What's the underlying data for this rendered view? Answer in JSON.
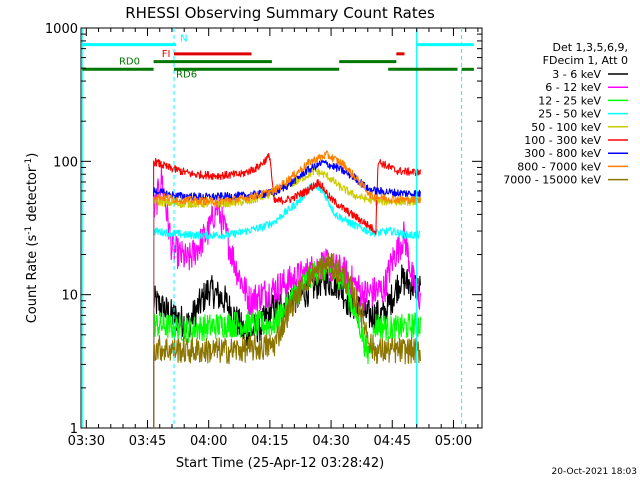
{
  "chart_data": {
    "type": "line",
    "title": "RHESSI Observing Summary Count Rates",
    "xlabel": "Start Time (25-Apr-12 03:28:42)",
    "ylabel": "Count Rate (s",
    "ylabel_exp": "-1",
    "ylabel_tail": " detector",
    "ylabel_close": ")",
    "xlim": [
      "03:28:42",
      "05:07:00"
    ],
    "ylim": [
      1,
      1000
    ],
    "y_scale": "log",
    "x_ticks": [
      "03:30",
      "03:45",
      "04:00",
      "04:15",
      "04:30",
      "04:45",
      "05:00"
    ],
    "x_tick_minutes": [
      210,
      225,
      240,
      255,
      270,
      285,
      300
    ],
    "y_ticks": [
      "1",
      "10",
      "100",
      "1000"
    ],
    "y_tick_values": [
      1,
      10,
      100,
      1000
    ],
    "legend_header": [
      "Det 1,3,5,6,9,",
      "FDecim 1, Att 0"
    ],
    "legend_placement": "right",
    "series": [
      {
        "name": "3 - 6 keV",
        "color": "#000000",
        "keyframes": [
          [
            226.5,
            9
          ],
          [
            231,
            7
          ],
          [
            235,
            6
          ],
          [
            240,
            11
          ],
          [
            244,
            9
          ],
          [
            249,
            5
          ],
          [
            253,
            6
          ],
          [
            256,
            8
          ],
          [
            263,
            10
          ],
          [
            268,
            13
          ],
          [
            272,
            12
          ],
          [
            274,
            9
          ],
          [
            279,
            7
          ],
          [
            283,
            7
          ],
          [
            287,
            13
          ],
          [
            292,
            11
          ]
        ]
      },
      {
        "name": "6 - 12 keV",
        "color": "#ff00ff",
        "keyframes": [
          [
            226.5,
            40
          ],
          [
            228.5,
            75
          ],
          [
            231,
            22
          ],
          [
            235,
            18
          ],
          [
            240,
            30
          ],
          [
            242,
            47
          ],
          [
            244,
            30
          ],
          [
            247,
            15
          ],
          [
            250,
            9
          ],
          [
            253,
            10
          ],
          [
            256,
            11
          ],
          [
            263,
            14
          ],
          [
            268,
            17
          ],
          [
            273,
            15
          ],
          [
            278,
            10
          ],
          [
            283,
            11
          ],
          [
            285,
            18
          ],
          [
            288,
            28
          ],
          [
            290,
            13
          ],
          [
            292,
            9
          ]
        ]
      },
      {
        "name": "12 - 25 keV",
        "color": "#00ff00",
        "keyframes": [
          [
            226.5,
            6
          ],
          [
            235,
            5.5
          ],
          [
            245,
            6
          ],
          [
            253,
            6
          ],
          [
            256,
            6
          ],
          [
            260,
            9
          ],
          [
            265,
            14
          ],
          [
            269,
            16
          ],
          [
            273,
            13
          ],
          [
            277,
            6
          ],
          [
            279,
            3.5
          ],
          [
            281,
            6
          ],
          [
            285,
            5.5
          ],
          [
            292,
            6
          ]
        ]
      },
      {
        "name": "25 - 50 keV",
        "color": "#00ffff",
        "keyframes": [
          [
            226.5,
            30
          ],
          [
            235,
            28
          ],
          [
            245,
            28
          ],
          [
            253,
            32
          ],
          [
            256,
            35
          ],
          [
            262,
            50
          ],
          [
            265,
            65
          ],
          [
            268,
            60
          ],
          [
            271,
            40
          ],
          [
            275,
            34
          ],
          [
            279,
            30
          ],
          [
            281,
            29
          ],
          [
            285,
            30
          ],
          [
            288,
            28
          ],
          [
            292,
            28
          ]
        ]
      },
      {
        "name": "50 - 100 keV",
        "color": "#cccc00",
        "keyframes": [
          [
            226.5,
            50
          ],
          [
            233,
            48
          ],
          [
            243,
            48
          ],
          [
            250,
            50
          ],
          [
            256,
            58
          ],
          [
            262,
            72
          ],
          [
            266,
            85
          ],
          [
            269,
            78
          ],
          [
            272,
            65
          ],
          [
            276,
            55
          ],
          [
            279,
            52
          ],
          [
            281,
            50
          ],
          [
            292,
            50
          ]
        ]
      },
      {
        "name": "100 - 300 keV",
        "color": "#ff0000",
        "keyframes": [
          [
            226.5,
            100
          ],
          [
            230,
            90
          ],
          [
            236,
            80
          ],
          [
            242,
            78
          ],
          [
            248,
            80
          ],
          [
            252,
            90
          ],
          [
            255,
            110
          ],
          [
            256,
            50
          ],
          [
            260,
            52
          ],
          [
            264,
            60
          ],
          [
            267,
            70
          ],
          [
            270,
            52
          ],
          [
            274,
            42
          ],
          [
            278,
            35
          ],
          [
            281,
            30
          ],
          [
            281.5,
            100
          ],
          [
            286,
            85
          ],
          [
            292,
            82
          ]
        ]
      },
      {
        "name": "300 - 800 keV",
        "color": "#0000ff",
        "keyframes": [
          [
            226.5,
            60
          ],
          [
            232,
            55
          ],
          [
            240,
            54
          ],
          [
            248,
            55
          ],
          [
            256,
            58
          ],
          [
            260,
            68
          ],
          [
            264,
            85
          ],
          [
            268,
            98
          ],
          [
            272,
            88
          ],
          [
            276,
            75
          ],
          [
            279,
            62
          ],
          [
            281,
            60
          ],
          [
            286,
            58
          ],
          [
            292,
            57
          ]
        ]
      },
      {
        "name": "800 - 7000 keV",
        "color": "#ff8000",
        "keyframes": [
          [
            226.5,
            55
          ],
          [
            232,
            52
          ],
          [
            240,
            50
          ],
          [
            248,
            52
          ],
          [
            256,
            60
          ],
          [
            260,
            75
          ],
          [
            265,
            100
          ],
          [
            269,
            112
          ],
          [
            273,
            95
          ],
          [
            277,
            70
          ],
          [
            280,
            55
          ],
          [
            281,
            54
          ],
          [
            286,
            52
          ],
          [
            292,
            51
          ]
        ]
      },
      {
        "name": "7000 - 15000 keV",
        "color": "#8b7500",
        "keyframes": [
          [
            226.5,
            4
          ],
          [
            235,
            3.8
          ],
          [
            245,
            3.8
          ],
          [
            253,
            4
          ],
          [
            256,
            4.2
          ],
          [
            260,
            8
          ],
          [
            264,
            13
          ],
          [
            269,
            17
          ],
          [
            273,
            14
          ],
          [
            277,
            8
          ],
          [
            280,
            4
          ],
          [
            281,
            3.8
          ],
          [
            292,
            3.8
          ]
        ]
      }
    ],
    "markers": {
      "cyan_verticals": [
        231.5,
        291.0,
        302.0
      ],
      "cyan_dashed": [
        231.5,
        302.0
      ],
      "cyan_solid": [
        291.0
      ],
      "bars": [
        {
          "label": "N",
          "color": "#00ffff",
          "level": 750,
          "segments": [
            [
              209,
              232
            ],
            [
              291,
              305
            ]
          ]
        },
        {
          "label": "FI",
          "color": "#e00000",
          "level": 640,
          "segments": [
            [
              231.5,
              250.5
            ],
            [
              286,
              288
            ]
          ]
        },
        {
          "label": "RD0",
          "color": "#007700",
          "level": 560,
          "segments": [
            [
              226.5,
              255.5
            ],
            [
              272,
              286
            ]
          ]
        },
        {
          "label": "RD6",
          "color": "#007700",
          "level": 490,
          "segments": [
            [
              209,
              226.5
            ],
            [
              231.5,
              272
            ],
            [
              284,
              301
            ],
            [
              302,
              305
            ]
          ]
        }
      ]
    }
  },
  "footer": {
    "timestamp": "20-Oct-2021 18:03"
  }
}
